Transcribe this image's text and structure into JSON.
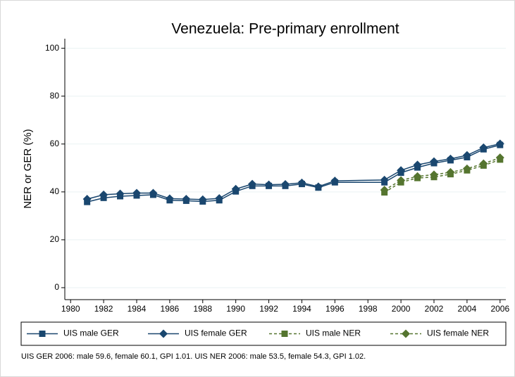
{
  "chart_data": {
    "type": "line",
    "title": "Venezuela: Pre-primary enrollment",
    "y_label": "NER or GER (%)",
    "note": "UIS GER 2006: male 59.6, female 60.1, GPI 1.01. UIS NER 2006: male 53.5, female 54.3, GPI 1.02.",
    "x": [
      1981,
      1982,
      1983,
      1984,
      1985,
      1986,
      1987,
      1988,
      1989,
      1990,
      1991,
      1992,
      1993,
      1994,
      1995,
      1996,
      1999,
      2000,
      2001,
      2002,
      2003,
      2004,
      2005,
      2006
    ],
    "series": [
      {
        "name": "UIS male GER",
        "color": "#1a476f",
        "marker": "square",
        "dash": false,
        "values": [
          35.8,
          37.5,
          38.2,
          38.5,
          38.8,
          36.5,
          36.3,
          36.0,
          36.5,
          40.2,
          42.5,
          42.5,
          42.5,
          43.3,
          41.8,
          44.0,
          44.0,
          48.0,
          50.2,
          52.0,
          53.2,
          54.5,
          57.8,
          59.6
        ]
      },
      {
        "name": "UIS female GER",
        "color": "#1a476f",
        "marker": "diamond",
        "dash": false,
        "values": [
          37.0,
          38.8,
          39.2,
          39.5,
          39.5,
          37.2,
          37.0,
          36.8,
          37.3,
          41.2,
          43.3,
          43.0,
          43.2,
          43.8,
          42.2,
          44.6,
          45.0,
          49.0,
          51.3,
          52.7,
          53.8,
          55.3,
          58.5,
          60.1
        ]
      },
      {
        "name": "UIS male NER",
        "color": "#55752f",
        "marker": "square",
        "dash": true,
        "values": [
          null,
          null,
          null,
          null,
          null,
          null,
          null,
          null,
          null,
          null,
          null,
          null,
          null,
          null,
          null,
          null,
          39.8,
          44.0,
          45.8,
          46.2,
          47.4,
          49.0,
          51.0,
          53.5
        ]
      },
      {
        "name": "UIS female NER",
        "color": "#55752f",
        "marker": "diamond",
        "dash": true,
        "values": [
          null,
          null,
          null,
          null,
          null,
          null,
          null,
          null,
          null,
          null,
          null,
          null,
          null,
          null,
          null,
          null,
          40.8,
          44.8,
          46.5,
          47.2,
          48.2,
          49.7,
          51.8,
          54.3
        ]
      }
    ],
    "xlim": [
      1979.65,
      2006.35
    ],
    "xticks": [
      1980,
      1982,
      1984,
      1986,
      1988,
      1990,
      1992,
      1994,
      1996,
      1998,
      2000,
      2002,
      2004,
      2006
    ],
    "ylim": [
      -5,
      104
    ],
    "yticks": [
      0,
      20,
      40,
      60,
      80,
      100
    ],
    "grid": true,
    "legend": "bottom"
  }
}
